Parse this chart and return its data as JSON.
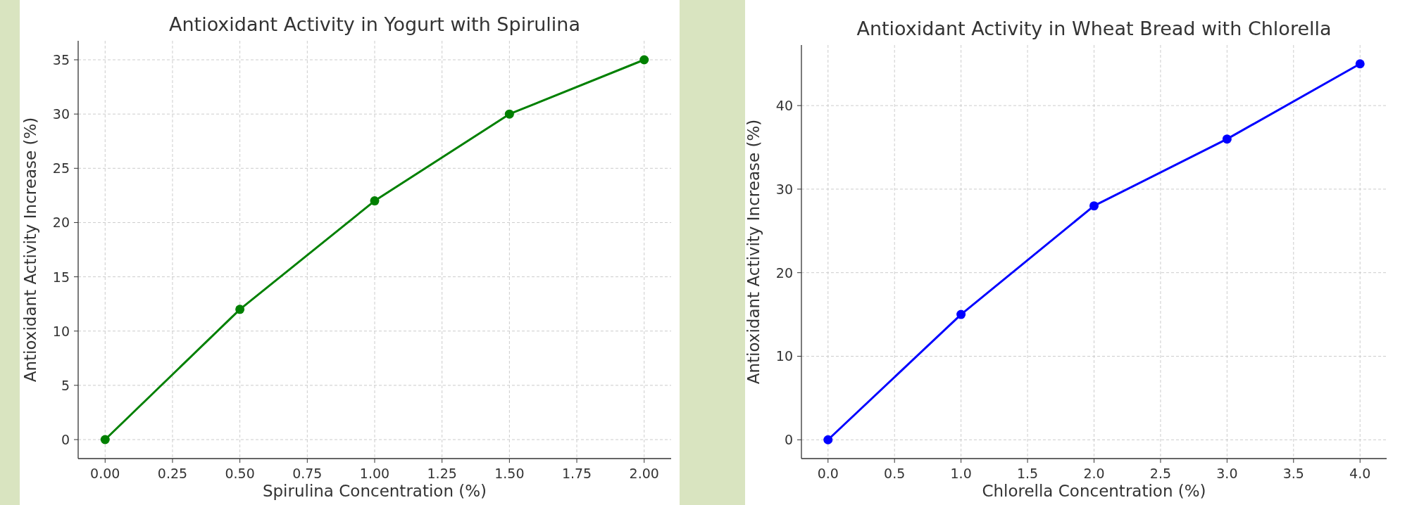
{
  "chart_data": [
    {
      "type": "line",
      "title": "Antioxidant Activity in Yogurt with Spirulina",
      "xlabel": "Spirulina Concentration (%)",
      "ylabel": "Antioxidant Activity Increase (%)",
      "x": [
        0,
        0.5,
        1,
        1.5,
        2
      ],
      "series": [
        {
          "color": "#008000",
          "values": [
            0,
            12,
            22,
            30,
            35
          ]
        }
      ],
      "xlim": [
        -0.1,
        2.1
      ],
      "xticks": [
        {
          "value": 0,
          "label": "0.00"
        },
        {
          "value": 0.25,
          "label": "0.25"
        },
        {
          "value": 0.5,
          "label": "0.50"
        },
        {
          "value": 0.75,
          "label": "0.75"
        },
        {
          "value": 1,
          "label": "1.00"
        },
        {
          "value": 1.25,
          "label": "1.25"
        },
        {
          "value": 1.5,
          "label": "1.50"
        },
        {
          "value": 1.75,
          "label": "1.75"
        },
        {
          "value": 2,
          "label": "2.00"
        }
      ],
      "ylim": [
        -1.75,
        36.75
      ],
      "yticks": [
        0,
        5,
        10,
        15,
        20,
        25,
        30,
        35
      ],
      "grid": true,
      "marker": "circle",
      "line_style": "solid"
    },
    {
      "type": "line",
      "title": "Antioxidant Activity in Wheat Bread with Chlorella",
      "xlabel": "Chlorella Concentration (%)",
      "ylabel": "Antioxidant Activity Increase (%)",
      "x": [
        0,
        1,
        2,
        3,
        4
      ],
      "series": [
        {
          "color": "#0000ff",
          "values": [
            0,
            15,
            28,
            36,
            45
          ]
        }
      ],
      "xlim": [
        -0.2,
        4.2
      ],
      "xticks": [
        {
          "value": 0,
          "label": "0.0"
        },
        {
          "value": 0.5,
          "label": "0.5"
        },
        {
          "value": 1,
          "label": "1.0"
        },
        {
          "value": 1.5,
          "label": "1.5"
        },
        {
          "value": 2,
          "label": "2.0"
        },
        {
          "value": 2.5,
          "label": "2.5"
        },
        {
          "value": 3,
          "label": "3.0"
        },
        {
          "value": 3.5,
          "label": "3.5"
        },
        {
          "value": 4,
          "label": "4.0"
        }
      ],
      "ylim": [
        -2.25,
        47.25
      ],
      "yticks": [
        0,
        10,
        20,
        30,
        40
      ],
      "grid": true,
      "marker": "circle",
      "line_style": "solid"
    }
  ]
}
